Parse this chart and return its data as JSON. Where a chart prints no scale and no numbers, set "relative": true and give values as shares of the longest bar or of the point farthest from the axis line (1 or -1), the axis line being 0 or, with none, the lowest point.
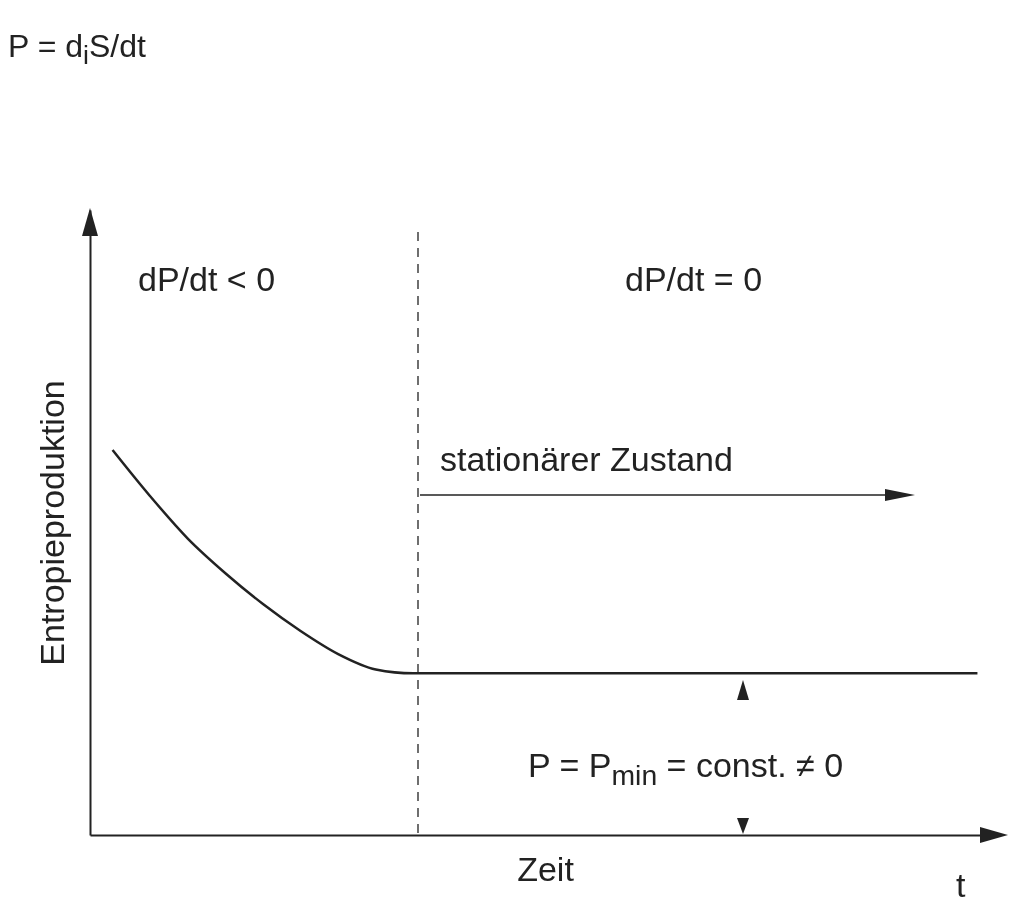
{
  "chart_data": {
    "type": "line",
    "title": "P = d$_{i}$S/dt",
    "xlabel": "Zeit",
    "ylabel": "Entropieproduktion",
    "relative": true,
    "grid": false,
    "line_style": "solid",
    "categories": [
      null,
      null,
      null,
      null,
      null,
      null,
      null,
      null,
      null,
      null,
      null,
      null,
      null,
      null,
      null,
      null,
      null,
      null,
      null,
      null,
      null,
      null,
      null,
      null
    ],
    "series": [
      {
        "color": "#222222",
        "values": [
          1,
          0.88,
          0.77,
          0.68,
          0.6,
          0.53,
          0.47,
          0.43,
          0.42,
          0.42,
          0.42,
          0.42,
          0.42,
          0.42,
          0.42,
          0.42,
          0.42,
          0.42,
          0.42,
          0.42,
          0.42,
          0.42,
          0.42,
          0.42
        ]
      }
    ],
    "annotations": [
      "dP/dt < 0",
      "dP/dt = 0",
      "stationärer Zustand",
      "P = P$_{min}$ = const. ≠ 0",
      "t"
    ]
  }
}
